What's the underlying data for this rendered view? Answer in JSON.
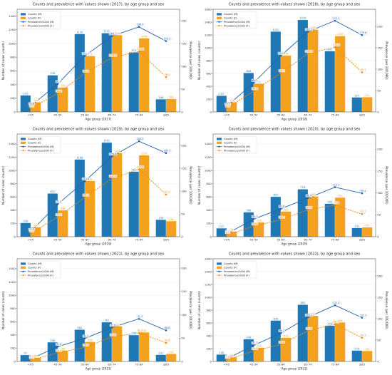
{
  "chart_data": [
    {
      "type": "bar",
      "title": "Counts and prevalence with values shown (2017), by age group and sex",
      "xlabel": "Age group (2017)",
      "ylabel": "Number of cases (counts)",
      "y2label": "Prevalence (per 100,000)",
      "categories": [
        "<45",
        "45-54",
        "55-64",
        "65-74",
        "75-84",
        "≥85"
      ],
      "ylim": [
        0,
        1500
      ],
      "yticks": [
        0,
        200,
        400,
        600,
        800,
        1000,
        1200,
        1400
      ],
      "y2lim": [
        0,
        225
      ],
      "y2ticks": [
        0,
        50,
        100,
        150,
        200
      ],
      "grid": true,
      "legend": "upper-left",
      "series": [
        {
          "name": "Counts (M)",
          "kind": "bar",
          "axis": "left",
          "color": "#1f77b4",
          "values": [
            243,
            536,
            1139,
            1151,
            870,
            186
          ]
        },
        {
          "name": "Counts (F)",
          "kind": "bar",
          "axis": "left",
          "color": "#f4a21d",
          "values": [
            141,
            358,
            817,
            1124,
            1076,
            189
          ]
        },
        {
          "name": "Prevalence/100k (M)",
          "kind": "line",
          "axis": "right",
          "color": "#2360ad",
          "line_style": "solid",
          "values": [
            12.8,
            61.4,
            122.7,
            166.1,
            186.4,
            155.2
          ]
        },
        {
          "name": "Prevalence/100k (F)",
          "kind": "line",
          "axis": "right",
          "color": "#ee8a12",
          "line_style": "dashed",
          "values": [
            7.9,
            40.6,
            84.3,
            118.9,
            132.6,
            76.5
          ]
        }
      ]
    },
    {
      "type": "bar",
      "title": "Counts and prevalence with values shown (2018), by age group and sex",
      "xlabel": "Age group (2018)",
      "ylabel": "Number of cases (counts)",
      "y2label": "Prevalence (per 100,000)",
      "categories": [
        "<45",
        "45-54",
        "55-64",
        "65-74",
        "75-84",
        "≥85"
      ],
      "ylim": [
        0,
        1600
      ],
      "yticks": [
        0,
        200,
        400,
        600,
        800,
        1000,
        1200,
        1400,
        1600
      ],
      "y2lim": [
        0,
        240
      ],
      "y2ticks": [
        0,
        50,
        100,
        150,
        200
      ],
      "grid": true,
      "legend": "upper-left",
      "series": [
        {
          "name": "Counts (M)",
          "kind": "bar",
          "axis": "left",
          "color": "#1f77b4",
          "values": [
            252,
            608,
            1252,
            1434,
            947,
            227
          ]
        },
        {
          "name": "Counts (F)",
          "kind": "bar",
          "axis": "left",
          "color": "#f4a21d",
          "values": [
            152,
            441,
            878,
            1283,
            1183,
            231
          ]
        },
        {
          "name": "Prevalence/100k (M)",
          "kind": "line",
          "axis": "right",
          "color": "#2360ad",
          "line_style": "solid",
          "values": [
            13.1,
            68.2,
            131.5,
            187.3,
            213.3,
            179.6
          ]
        },
        {
          "name": "Prevalence/100k (F)",
          "kind": "line",
          "axis": "right",
          "color": "#ee8a12",
          "line_style": "dashed",
          "values": [
            8.3,
            48.9,
            90.7,
            136.2,
            151.4,
            92.7
          ]
        }
      ]
    },
    {
      "type": "bar",
      "title": "Counts and prevalence with values shown (2019), by age group and sex",
      "xlabel": "Age group (2019)",
      "ylabel": "Number of cases (counts)",
      "y2label": "Prevalence (per 100,000)",
      "categories": [
        "<45",
        "45-54",
        "55-64",
        "65-74",
        "75-84",
        "≥85"
      ],
      "ylim": [
        0,
        1550
      ],
      "yticks": [
        0,
        200,
        400,
        600,
        800,
        1000,
        1200,
        1400
      ],
      "y2lim": [
        0,
        225
      ],
      "y2ticks": [
        0,
        50,
        100,
        150,
        200
      ],
      "grid": true,
      "legend": "upper-left",
      "series": [
        {
          "name": "Counts (M)",
          "kind": "bar",
          "axis": "left",
          "color": "#1f77b4",
          "values": [
            208,
            652,
            1166,
            1421,
            982,
            256
          ]
        },
        {
          "name": "Counts (F)",
          "kind": "bar",
          "axis": "left",
          "color": "#f4a21d",
          "values": [
            141,
            398,
            842,
            1264,
            1229,
            236
          ]
        },
        {
          "name": "Prevalence/100k (M)",
          "kind": "line",
          "axis": "right",
          "color": "#2360ad",
          "line_style": "solid",
          "values": [
            10.8,
            71.4,
            121.6,
            175.8,
            209.2,
            183.3
          ]
        },
        {
          "name": "Prevalence/100k (F)",
          "kind": "line",
          "axis": "right",
          "color": "#ee8a12",
          "line_style": "dashed",
          "values": [
            7.4,
            43.2,
            86.1,
            127.5,
            147.6,
            92.4
          ]
        }
      ]
    },
    {
      "type": "bar",
      "title": "Counts and prevalence with values shown (2020), by age group and sex",
      "xlabel": "Age group (2020)",
      "ylabel": "Number of cases (counts)",
      "y2label": "Prevalence (per 100,000)",
      "categories": [
        "<45",
        "45-54",
        "55-64",
        "65-74",
        "75-84",
        "≥85"
      ],
      "ylim": [
        0,
        1550
      ],
      "yticks": [
        0,
        200,
        400,
        600,
        800,
        1000,
        1200,
        1400
      ],
      "y2lim": [
        0,
        235
      ],
      "y2ticks": [
        0,
        50,
        100,
        150,
        200
      ],
      "grid": true,
      "legend": "upper-left",
      "series": [
        {
          "name": "Counts (M)",
          "kind": "bar",
          "axis": "left",
          "color": "#1f77b4",
          "values": [
            127,
            368,
            603,
            716,
            498,
            131
          ]
        },
        {
          "name": "Counts (F)",
          "kind": "bar",
          "axis": "left",
          "color": "#f4a21d",
          "values": [
            76,
            216,
            381,
            608,
            591,
            141
          ]
        },
        {
          "name": "Prevalence/100k (M)",
          "kind": "line",
          "axis": "right",
          "color": "#2360ad",
          "line_style": "solid",
          "values": [
            6.6,
            40.3,
            63.8,
            88.4,
            113.3,
            99.4
          ]
        },
        {
          "name": "Prevalence/100k (F)",
          "kind": "line",
          "axis": "right",
          "color": "#ee8a12",
          "line_style": "dashed",
          "values": [
            4.1,
            23.6,
            39.2,
            61.5,
            72.3,
            51.7
          ]
        }
      ]
    },
    {
      "type": "bar",
      "title": "Counts and prevalence with values shown (2021), by age group and sex",
      "xlabel": "Age group (2021)",
      "ylabel": "Number of cases (counts)",
      "y2label": "Prevalence (per 100,000)",
      "categories": [
        "<45",
        "45-54",
        "55-64",
        "65-74",
        "75-84",
        "≥85"
      ],
      "ylim": [
        0,
        1550
      ],
      "yticks": [
        0,
        200,
        400,
        600,
        800,
        1000,
        1200,
        1400
      ],
      "y2lim": [
        0,
        220
      ],
      "y2ticks": [
        0,
        50,
        100,
        150,
        200
      ],
      "grid": true,
      "legend": "upper-left",
      "series": [
        {
          "name": "Counts (M)",
          "kind": "bar",
          "axis": "left",
          "color": "#1f77b4",
          "values": [
            97,
            290,
            480,
            592,
            398,
            101
          ]
        },
        {
          "name": "Counts (F)",
          "kind": "bar",
          "axis": "left",
          "color": "#f4a21d",
          "values": [
            55,
            166,
            296,
            532,
            440,
            114
          ]
        },
        {
          "name": "Prevalence/100k (M)",
          "kind": "line",
          "axis": "right",
          "color": "#2360ad",
          "line_style": "solid",
          "values": [
            5.2,
            31.8,
            49.3,
            72.6,
            91.3,
            66.6
          ]
        },
        {
          "name": "Prevalence/100k (F)",
          "kind": "line",
          "axis": "right",
          "color": "#ee8a12",
          "line_style": "dashed",
          "values": [
            3.1,
            18.4,
            30.2,
            52.1,
            61.3,
            39.8
          ]
        }
      ]
    },
    {
      "type": "bar",
      "title": "Counts and prevalence with values shown (2022), by age group and sex",
      "xlabel": "Age group (2022)",
      "ylabel": "Number of cases (counts)",
      "y2label": "Prevalence (per 100,000)",
      "categories": [
        "<45",
        "45-54",
        "55-64",
        "65-74",
        "75-84",
        "≥85"
      ],
      "ylim": [
        0,
        1600
      ],
      "yticks": [
        0,
        200,
        400,
        600,
        800,
        1000,
        1200,
        1400,
        1600
      ],
      "y2lim": [
        0,
        240
      ],
      "y2ticks": [
        0,
        50,
        100,
        150,
        200
      ],
      "grid": true,
      "legend": "upper-left",
      "series": [
        {
          "name": "Counts (M)",
          "kind": "bar",
          "axis": "left",
          "color": "#1f77b4",
          "values": [
            108,
            348,
            638,
            884,
            558,
            170
          ]
        },
        {
          "name": "Counts (F)",
          "kind": "bar",
          "axis": "left",
          "color": "#f4a21d",
          "values": [
            66,
            214,
            370,
            712,
            609,
            165
          ]
        },
        {
          "name": "Prevalence/100k (M)",
          "kind": "line",
          "axis": "right",
          "color": "#2360ad",
          "line_style": "solid",
          "values": [
            5.9,
            37.7,
            66.2,
            103.1,
            131.4,
            102.3
          ]
        },
        {
          "name": "Prevalence/100k (F)",
          "kind": "line",
          "axis": "right",
          "color": "#ee8a12",
          "line_style": "dashed",
          "values": [
            3.8,
            24.5,
            39.6,
            71.6,
            86.9,
            55.4
          ]
        }
      ]
    }
  ]
}
